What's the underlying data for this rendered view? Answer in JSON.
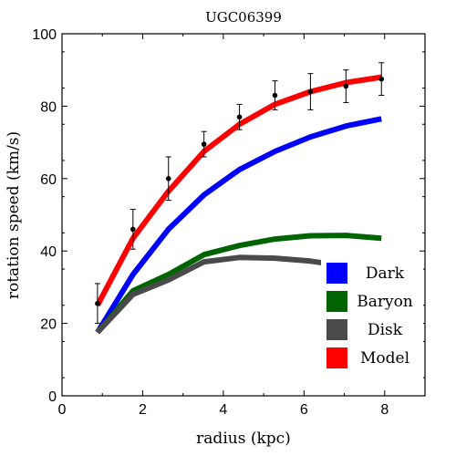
{
  "chart_data": {
    "type": "line",
    "title": "UGC06399",
    "xlabel": "radius (kpc)",
    "ylabel": "rotation speed (km/s)",
    "xlim": [
      0,
      9
    ],
    "ylim": [
      0,
      100
    ],
    "xticks": [
      0,
      2,
      4,
      6,
      8
    ],
    "yticks": [
      0,
      20,
      40,
      60,
      80,
      100
    ],
    "grid": false,
    "legend_position": "bottom-right",
    "x": [
      0.88,
      1.76,
      2.64,
      3.52,
      4.4,
      5.28,
      6.16,
      7.04,
      7.92
    ],
    "series": [
      {
        "name": "Dark",
        "color": "#0000ff",
        "values": [
          17.5,
          33.5,
          46.0,
          55.5,
          62.5,
          67.5,
          71.5,
          74.5,
          76.5
        ]
      },
      {
        "name": "Baryon",
        "color": "#006400",
        "values": [
          17.5,
          29.0,
          33.5,
          39.0,
          41.5,
          43.3,
          44.2,
          44.3,
          43.5
        ]
      },
      {
        "name": "Disk",
        "color": "#4a4a4a",
        "values": [
          17.5,
          28.0,
          32.0,
          37.0,
          38.2,
          38.0,
          37.2,
          35.8,
          35.0
        ]
      },
      {
        "name": "Model",
        "color": "#ff0000",
        "values": [
          25.0,
          43.5,
          56.5,
          67.5,
          75.0,
          80.5,
          84.0,
          86.5,
          88.0
        ]
      }
    ],
    "observed": {
      "values": [
        25.5,
        46.0,
        60.0,
        69.5,
        77.0,
        83.0,
        84.0,
        85.5,
        87.5
      ],
      "errors": [
        5.5,
        5.5,
        6.0,
        3.5,
        3.5,
        4.0,
        5.0,
        4.5,
        4.5
      ]
    }
  }
}
